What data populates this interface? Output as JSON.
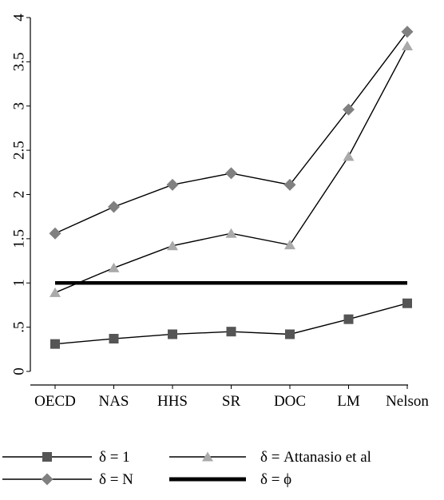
{
  "chart_data": {
    "type": "line",
    "categories": [
      "OECD",
      "NAS",
      "HHS",
      "SR",
      "DOC",
      "LM",
      "Nelson"
    ],
    "ylim": [
      0,
      4
    ],
    "yticks": [
      {
        "value": 0,
        "label": "0"
      },
      {
        "value": 0.5,
        "label": ".5"
      },
      {
        "value": 1,
        "label": "1"
      },
      {
        "value": 1.5,
        "label": "1.5"
      },
      {
        "value": 2,
        "label": "2"
      },
      {
        "value": 2.5,
        "label": "2.5"
      },
      {
        "value": 3,
        "label": "3"
      },
      {
        "value": 3.5,
        "label": "3.5"
      },
      {
        "value": 4,
        "label": "4"
      }
    ],
    "grid": false,
    "legend_position": "bottom",
    "series": [
      {
        "name": "δ = 1",
        "marker": "square",
        "color": "#555555",
        "line_color": "#000000",
        "values": [
          0.31,
          0.37,
          0.42,
          0.45,
          0.42,
          0.59,
          0.77
        ]
      },
      {
        "name": "δ = Attanasio et al",
        "marker": "triangle",
        "color": "#aaaaaa",
        "line_color": "#000000",
        "values": [
          0.89,
          1.17,
          1.42,
          1.56,
          1.43,
          2.43,
          3.68
        ]
      },
      {
        "name": "δ = N",
        "marker": "diamond",
        "color": "#808080",
        "line_color": "#000000",
        "values": [
          1.56,
          1.86,
          2.11,
          2.24,
          2.11,
          2.96,
          3.84
        ]
      },
      {
        "name": "δ = ϕ",
        "marker": "none",
        "color": "#000000",
        "line_color": "#000000",
        "thick": true,
        "values": [
          1,
          1,
          1,
          1,
          1,
          1,
          1
        ]
      }
    ]
  }
}
